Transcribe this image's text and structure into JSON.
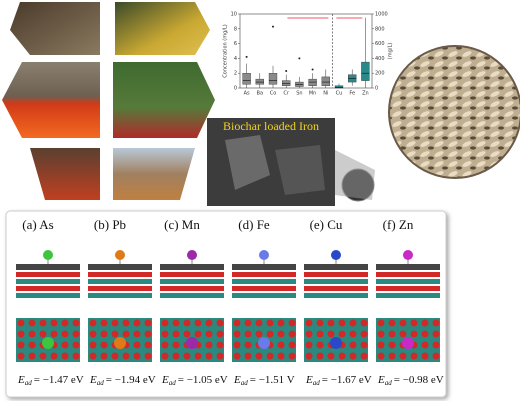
{
  "sem_caption": "Biochar loaded Iron",
  "boxplot": {
    "ylabel": "Concentration (mg/L)",
    "y2label": "(mg/L)",
    "categories": [
      "As",
      "Ba",
      "Co",
      "Cr",
      "Sn",
      "Mn",
      "Ni",
      "Cu",
      "Fe",
      "Zn"
    ],
    "ylim": [
      0,
      10
    ],
    "yticks": [
      0,
      2,
      4,
      6,
      8,
      10
    ],
    "y2lim": [
      0,
      1000
    ],
    "y2ticks": [
      0,
      200,
      400,
      600,
      800,
      1000
    ],
    "series": [
      {
        "axis": "y",
        "color": "#8a8a8a",
        "boxes": [
          {
            "low": 0,
            "q1": 0.5,
            "median": 1,
            "q3": 2,
            "high": 3.3,
            "outliers": [
              4.2
            ]
          },
          {
            "low": 0,
            "q1": 0.5,
            "median": 0.8,
            "q3": 1.2,
            "high": 2,
            "outliers": []
          },
          {
            "low": 0,
            "q1": 0.5,
            "median": 1,
            "q3": 2,
            "high": 3,
            "outliers": [
              8.3
            ]
          },
          {
            "low": 0,
            "q1": 0.3,
            "median": 0.6,
            "q3": 1,
            "high": 1.8,
            "outliers": [
              2.3
            ]
          },
          {
            "low": 0,
            "q1": 0.2,
            "median": 0.5,
            "q3": 0.8,
            "high": 1.5,
            "outliers": [
              4
            ]
          },
          {
            "low": 0,
            "q1": 0.3,
            "median": 0.8,
            "q3": 1.2,
            "high": 2,
            "outliers": [
              2.5
            ]
          },
          {
            "low": 0,
            "q1": 0.3,
            "median": 0.8,
            "q3": 1.5,
            "high": 2.5,
            "outliers": []
          }
        ]
      },
      {
        "axis": "y2",
        "color": "#2a8a8a",
        "boxes": [
          {
            "low": 0,
            "q1": 0,
            "median": 10,
            "q3": 30,
            "high": 60,
            "outliers": []
          },
          {
            "low": 30,
            "q1": 80,
            "median": 130,
            "q3": 180,
            "high": 250,
            "outliers": []
          },
          {
            "low": 0,
            "q1": 100,
            "median": 200,
            "q3": 350,
            "high": 950,
            "outliers": []
          }
        ]
      }
    ]
  },
  "panels": {
    "symbol": "E",
    "subscript": "ad",
    "items": [
      {
        "label": "(a) As",
        "energy": "= −1.47 eV"
      },
      {
        "label": "(b) Pb",
        "energy": "= −1.94 eV"
      },
      {
        "label": "(c) Mn",
        "energy": "= −1.05 eV"
      },
      {
        "label": "(d) Fe",
        "energy": "= −1.51 V"
      },
      {
        "label": "(e) Cu",
        "energy": "= −1.67 eV"
      },
      {
        "label": "(f) Zn",
        "energy": "= −0.98 eV"
      }
    ]
  }
}
